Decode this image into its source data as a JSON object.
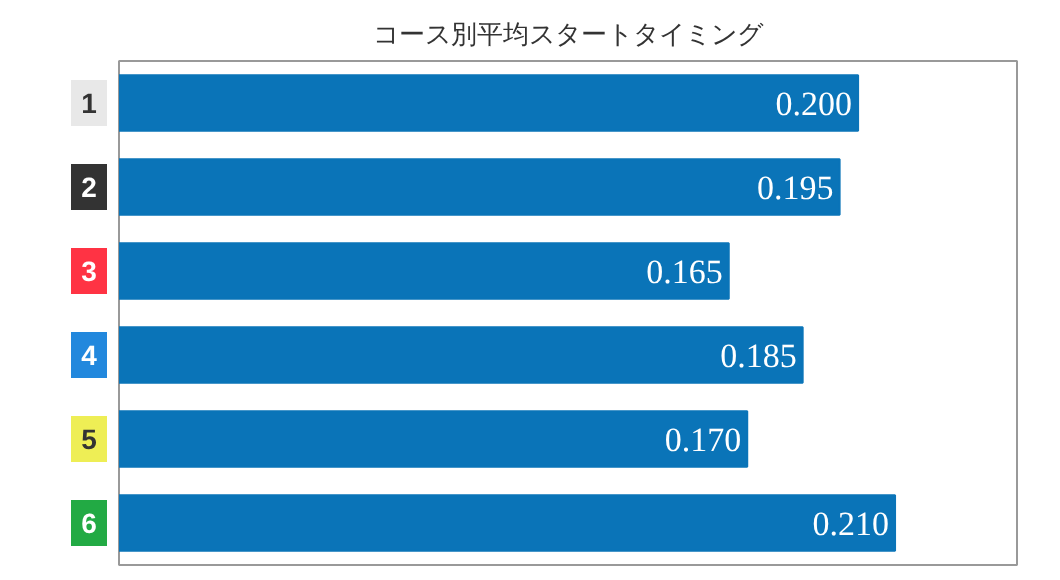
{
  "chart_data": {
    "type": "bar",
    "orientation": "horizontal",
    "title": "コース別平均スタートタイミング",
    "categories": [
      "1",
      "2",
      "3",
      "4",
      "5",
      "6"
    ],
    "values": [
      0.2,
      0.195,
      0.165,
      0.185,
      0.17,
      0.21
    ],
    "value_labels": [
      "0.200",
      "0.195",
      "0.165",
      "0.185",
      "0.170",
      "0.210"
    ],
    "color": "#0a74b8",
    "xlim": [
      0,
      0.243
    ],
    "tick_labels": "y",
    "grid": false
  }
}
